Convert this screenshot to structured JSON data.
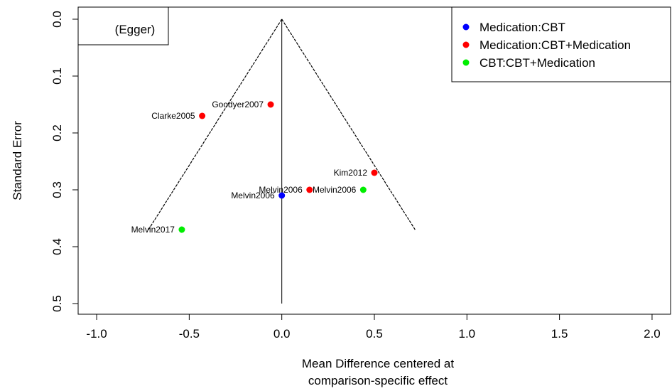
{
  "chart_data": {
    "type": "scatter",
    "subtype": "funnel",
    "title": "",
    "xlabel": [
      "Mean Difference centered at",
      "comparison-specific effect"
    ],
    "ylabel": "Standard Error",
    "xlim": [
      -1.1,
      2.1
    ],
    "ylim": [
      0.0,
      0.52
    ],
    "y_reversed": true,
    "xticks": [
      "-1.0",
      "-0.5",
      "0.0",
      "0.5",
      "1.0",
      "1.5",
      "2.0"
    ],
    "xtick_values": [
      -1.0,
      -0.5,
      0.0,
      0.5,
      1.0,
      1.5,
      2.0
    ],
    "yticks": [
      "0.0",
      "0.1",
      "0.2",
      "0.3",
      "0.4",
      "0.5"
    ],
    "ytick_values": [
      0.0,
      0.1,
      0.2,
      0.3,
      0.4,
      0.5
    ],
    "grid": false,
    "annotation": "(Egger)",
    "legend": {
      "placement": "top-right",
      "entries": [
        {
          "name": "Medication:CBT",
          "color": "#0000ff"
        },
        {
          "name": "Medication:CBT+Medication",
          "color": "#ff0000"
        },
        {
          "name": "CBT:CBT+Medication",
          "color": "#00ee00"
        }
      ]
    },
    "funnel": {
      "apex": [
        0.0,
        0.0
      ],
      "left_end": [
        -0.72,
        0.37
      ],
      "right_end": [
        0.72,
        0.37
      ],
      "center_line": {
        "x": 0.0,
        "y_from": 0.0,
        "y_to": 0.5
      }
    },
    "points": [
      {
        "label": "Goodyer2007",
        "x": -0.06,
        "y": 0.15,
        "series": 1,
        "label_side": "left"
      },
      {
        "label": "Clarke2005",
        "x": -0.43,
        "y": 0.17,
        "series": 1,
        "label_side": "left"
      },
      {
        "label": "Kim2012",
        "x": 0.5,
        "y": 0.27,
        "series": 1,
        "label_side": "left"
      },
      {
        "label": "Melvin2006",
        "x": 0.15,
        "y": 0.3,
        "series": 1,
        "label_side": "left"
      },
      {
        "label": "Melvin2006",
        "x": 0.0,
        "y": 0.31,
        "series": 0,
        "label_side": "left"
      },
      {
        "label": "Melvin2006",
        "x": 0.44,
        "y": 0.3,
        "series": 2,
        "label_side": "left"
      },
      {
        "label": "Melvin2017",
        "x": -0.54,
        "y": 0.37,
        "series": 2,
        "label_side": "left"
      }
    ]
  }
}
